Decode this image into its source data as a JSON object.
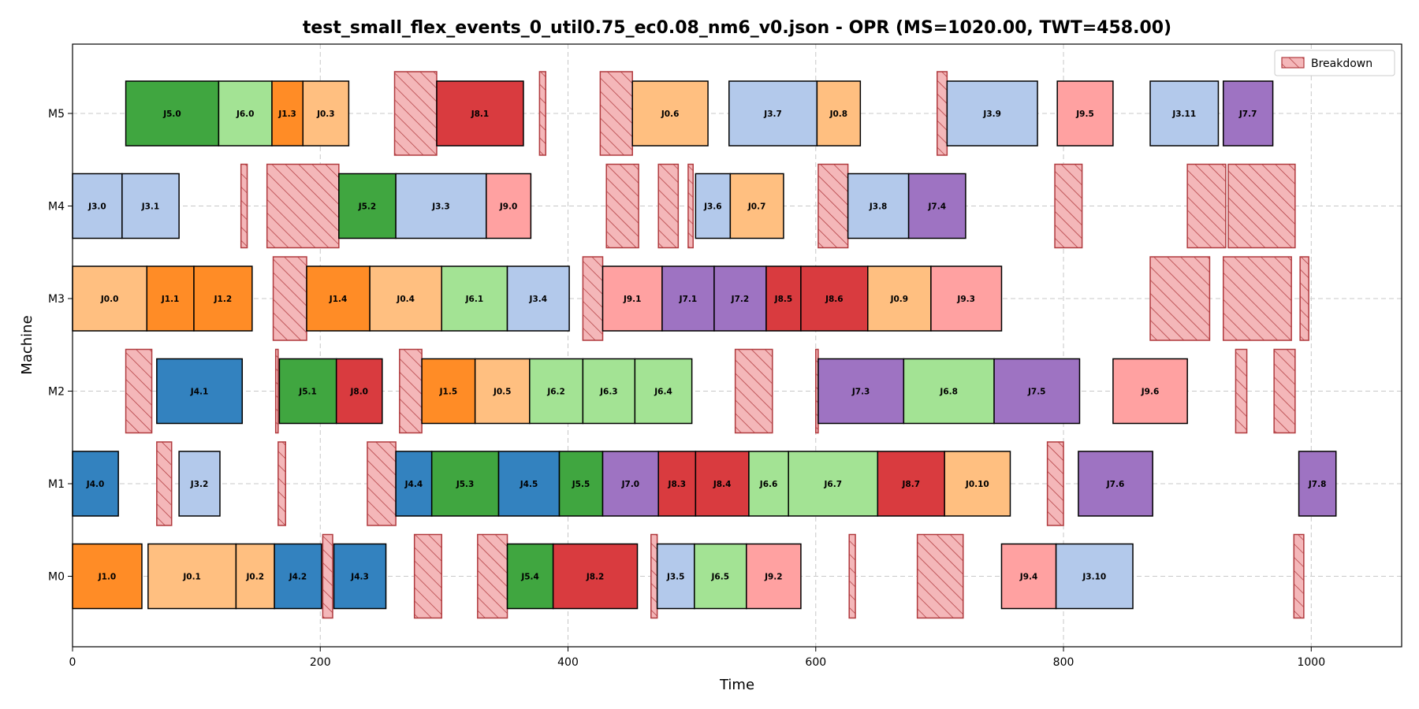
{
  "chart_data": {
    "type": "gantt",
    "title": "test_small_flex_events_0_util0.75_ec0.08_nm6_v0.json - OPR (MS=1020.00, TWT=458.00)",
    "xlabel": "Time",
    "ylabel": "Machine",
    "xlim": [
      0,
      1073
    ],
    "xticks": [
      0,
      200,
      400,
      600,
      800,
      1000
    ],
    "machines": [
      "M0",
      "M1",
      "M2",
      "M3",
      "M4",
      "M5"
    ],
    "grid": true,
    "legend": {
      "label": "Breakdown",
      "placement": "top-right"
    },
    "job_colors": {
      "J0": "#ffbf80",
      "J1": "#ff8c26",
      "J2": "#40a6ff",
      "J3": "#b3c9eb",
      "J4": "#3382bf",
      "J5": "#40a640",
      "J6": "#a3e394",
      "J7": "#9e73c2",
      "J8": "#d93b3f",
      "J9": "#ffa1a1"
    },
    "breakdown_style": {
      "fill": "#f4b7b9",
      "stroke": "#b03a3e",
      "hatch": "diagonal"
    },
    "operations": [
      {
        "machine": "M5",
        "label": "J5.0",
        "start": 43,
        "end": 118
      },
      {
        "machine": "M5",
        "label": "J6.0",
        "start": 118,
        "end": 161
      },
      {
        "machine": "M5",
        "label": "J1.3",
        "start": 161,
        "end": 186
      },
      {
        "machine": "M5",
        "label": "J0.3",
        "start": 186,
        "end": 223
      },
      {
        "machine": "M5",
        "label": "J8.1",
        "start": 294,
        "end": 364
      },
      {
        "machine": "M5",
        "label": "J0.6",
        "start": 452,
        "end": 513
      },
      {
        "machine": "M5",
        "label": "J3.7",
        "start": 530,
        "end": 601
      },
      {
        "machine": "M5",
        "label": "J0.8",
        "start": 601,
        "end": 636
      },
      {
        "machine": "M5",
        "label": "J3.9",
        "start": 706,
        "end": 779
      },
      {
        "machine": "M5",
        "label": "J9.5",
        "start": 795,
        "end": 840
      },
      {
        "machine": "M5",
        "label": "J3.11",
        "start": 870,
        "end": 925
      },
      {
        "machine": "M5",
        "label": "J7.7",
        "start": 929,
        "end": 969
      },
      {
        "machine": "M4",
        "label": "J3.0",
        "start": 0,
        "end": 40
      },
      {
        "machine": "M4",
        "label": "J3.1",
        "start": 40,
        "end": 86
      },
      {
        "machine": "M4",
        "label": "J5.2",
        "start": 215,
        "end": 261
      },
      {
        "machine": "M4",
        "label": "J3.3",
        "start": 261,
        "end": 334
      },
      {
        "machine": "M4",
        "label": "J9.0",
        "start": 334,
        "end": 370
      },
      {
        "machine": "M4",
        "label": "J3.6",
        "start": 503,
        "end": 531
      },
      {
        "machine": "M4",
        "label": "J0.7",
        "start": 531,
        "end": 574
      },
      {
        "machine": "M4",
        "label": "J3.8",
        "start": 626,
        "end": 675
      },
      {
        "machine": "M4",
        "label": "J7.4",
        "start": 675,
        "end": 721
      },
      {
        "machine": "M3",
        "label": "J0.0",
        "start": 0,
        "end": 60
      },
      {
        "machine": "M3",
        "label": "J1.1",
        "start": 60,
        "end": 98
      },
      {
        "machine": "M3",
        "label": "J1.2",
        "start": 98,
        "end": 145
      },
      {
        "machine": "M3",
        "label": "J1.4",
        "start": 189,
        "end": 240
      },
      {
        "machine": "M3",
        "label": "J0.4",
        "start": 240,
        "end": 298
      },
      {
        "machine": "M3",
        "label": "J6.1",
        "start": 298,
        "end": 351
      },
      {
        "machine": "M3",
        "label": "J3.4",
        "start": 351,
        "end": 401
      },
      {
        "machine": "M3",
        "label": "J9.1",
        "start": 428,
        "end": 476
      },
      {
        "machine": "M3",
        "label": "J7.1",
        "start": 476,
        "end": 518
      },
      {
        "machine": "M3",
        "label": "J7.2",
        "start": 518,
        "end": 560
      },
      {
        "machine": "M3",
        "label": "J8.5",
        "start": 560,
        "end": 588
      },
      {
        "machine": "M3",
        "label": "J8.6",
        "start": 588,
        "end": 642
      },
      {
        "machine": "M3",
        "label": "J0.9",
        "start": 642,
        "end": 693
      },
      {
        "machine": "M3",
        "label": "J9.3",
        "start": 693,
        "end": 750
      },
      {
        "machine": "M2",
        "label": "J4.1",
        "start": 68,
        "end": 137
      },
      {
        "machine": "M2",
        "label": "J5.1",
        "start": 167,
        "end": 213
      },
      {
        "machine": "M2",
        "label": "J8.0",
        "start": 213,
        "end": 250
      },
      {
        "machine": "M2",
        "label": "J1.5",
        "start": 282,
        "end": 325
      },
      {
        "machine": "M2",
        "label": "J0.5",
        "start": 325,
        "end": 369
      },
      {
        "machine": "M2",
        "label": "J6.2",
        "start": 369,
        "end": 412
      },
      {
        "machine": "M2",
        "label": "J6.3",
        "start": 412,
        "end": 454
      },
      {
        "machine": "M2",
        "label": "J6.4",
        "start": 454,
        "end": 500
      },
      {
        "machine": "M2",
        "label": "J7.3",
        "start": 602,
        "end": 671
      },
      {
        "machine": "M2",
        "label": "J6.8",
        "start": 671,
        "end": 744
      },
      {
        "machine": "M2",
        "label": "J7.5",
        "start": 744,
        "end": 813
      },
      {
        "machine": "M2",
        "label": "J9.6",
        "start": 840,
        "end": 900
      },
      {
        "machine": "M1",
        "label": "J4.0",
        "start": 0,
        "end": 37
      },
      {
        "machine": "M1",
        "label": "J3.2",
        "start": 86,
        "end": 119
      },
      {
        "machine": "M1",
        "label": "J4.4",
        "start": 261,
        "end": 290
      },
      {
        "machine": "M1",
        "label": "J5.3",
        "start": 290,
        "end": 344
      },
      {
        "machine": "M1",
        "label": "J4.5",
        "start": 344,
        "end": 393
      },
      {
        "machine": "M1",
        "label": "J5.5",
        "start": 393,
        "end": 428
      },
      {
        "machine": "M1",
        "label": "J7.0",
        "start": 428,
        "end": 473
      },
      {
        "machine": "M1",
        "label": "J8.3",
        "start": 473,
        "end": 503
      },
      {
        "machine": "M1",
        "label": "J8.4",
        "start": 503,
        "end": 546
      },
      {
        "machine": "M1",
        "label": "J6.6",
        "start": 546,
        "end": 578
      },
      {
        "machine": "M1",
        "label": "J6.7",
        "start": 578,
        "end": 650
      },
      {
        "machine": "M1",
        "label": "J8.7",
        "start": 650,
        "end": 704
      },
      {
        "machine": "M1",
        "label": "J0.10",
        "start": 704,
        "end": 757
      },
      {
        "machine": "M1",
        "label": "J7.6",
        "start": 812,
        "end": 872
      },
      {
        "machine": "M1",
        "label": "J7.8",
        "start": 990,
        "end": 1020
      },
      {
        "machine": "M0",
        "label": "J1.0",
        "start": 0,
        "end": 56
      },
      {
        "machine": "M0",
        "label": "J0.1",
        "start": 61,
        "end": 132
      },
      {
        "machine": "M0",
        "label": "J0.2",
        "start": 132,
        "end": 163
      },
      {
        "machine": "M0",
        "label": "J4.2",
        "start": 163,
        "end": 201
      },
      {
        "machine": "M0",
        "label": "J4.3",
        "start": 211,
        "end": 253
      },
      {
        "machine": "M0",
        "label": "J5.4",
        "start": 351,
        "end": 388
      },
      {
        "machine": "M0",
        "label": "J8.2",
        "start": 388,
        "end": 456
      },
      {
        "machine": "M0",
        "label": "J3.5",
        "start": 472,
        "end": 502
      },
      {
        "machine": "M0",
        "label": "J6.5",
        "start": 502,
        "end": 544
      },
      {
        "machine": "M0",
        "label": "J9.2",
        "start": 544,
        "end": 588
      },
      {
        "machine": "M0",
        "label": "J9.4",
        "start": 750,
        "end": 794
      },
      {
        "machine": "M0",
        "label": "J3.10",
        "start": 794,
        "end": 856
      }
    ],
    "breakdowns": [
      {
        "machine": "M5",
        "start": 260,
        "end": 294
      },
      {
        "machine": "M5",
        "start": 377,
        "end": 382
      },
      {
        "machine": "M5",
        "start": 426,
        "end": 452
      },
      {
        "machine": "M5",
        "start": 698,
        "end": 706
      },
      {
        "machine": "M4",
        "start": 136,
        "end": 141
      },
      {
        "machine": "M4",
        "start": 157,
        "end": 215
      },
      {
        "machine": "M4",
        "start": 431,
        "end": 457
      },
      {
        "machine": "M4",
        "start": 473,
        "end": 489
      },
      {
        "machine": "M4",
        "start": 497,
        "end": 501
      },
      {
        "machine": "M4",
        "start": 602,
        "end": 626
      },
      {
        "machine": "M4",
        "start": 793,
        "end": 815
      },
      {
        "machine": "M4",
        "start": 900,
        "end": 931
      },
      {
        "machine": "M4",
        "start": 933,
        "end": 987
      },
      {
        "machine": "M3",
        "start": 162,
        "end": 189
      },
      {
        "machine": "M3",
        "start": 412,
        "end": 428
      },
      {
        "machine": "M3",
        "start": 870,
        "end": 918
      },
      {
        "machine": "M3",
        "start": 929,
        "end": 984
      },
      {
        "machine": "M3",
        "start": 991,
        "end": 998
      },
      {
        "machine": "M2",
        "start": 43,
        "end": 64
      },
      {
        "machine": "M2",
        "start": 164,
        "end": 166
      },
      {
        "machine": "M2",
        "start": 264,
        "end": 282
      },
      {
        "machine": "M2",
        "start": 535,
        "end": 565
      },
      {
        "machine": "M2",
        "start": 600,
        "end": 602
      },
      {
        "machine": "M2",
        "start": 939,
        "end": 948
      },
      {
        "machine": "M2",
        "start": 970,
        "end": 987
      },
      {
        "machine": "M1",
        "start": 68,
        "end": 80
      },
      {
        "machine": "M1",
        "start": 166,
        "end": 172
      },
      {
        "machine": "M1",
        "start": 238,
        "end": 261
      },
      {
        "machine": "M1",
        "start": 787,
        "end": 800
      },
      {
        "machine": "M0",
        "start": 202,
        "end": 210
      },
      {
        "machine": "M0",
        "start": 276,
        "end": 298
      },
      {
        "machine": "M0",
        "start": 327,
        "end": 351
      },
      {
        "machine": "M0",
        "start": 467,
        "end": 472
      },
      {
        "machine": "M0",
        "start": 627,
        "end": 632
      },
      {
        "machine": "M0",
        "start": 682,
        "end": 719
      },
      {
        "machine": "M0",
        "start": 986,
        "end": 994
      }
    ]
  }
}
